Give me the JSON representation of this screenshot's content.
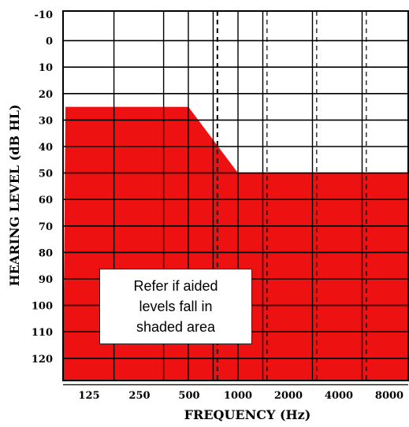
{
  "chart_data": {
    "type": "area",
    "title": "",
    "xlabel": "FREQUENCY (Hz)",
    "ylabel": "HEARING LEVEL (dB HL)",
    "x_scale": "log",
    "x_ticks": [
      "125",
      "250",
      "500",
      "1000",
      "2000",
      "4000",
      "8000"
    ],
    "x_dashed_ticks": [
      750,
      1500,
      3000,
      6000
    ],
    "y_ticks": [
      "-10",
      "0",
      "10",
      "20",
      "30",
      "40",
      "50",
      "60",
      "70",
      "80",
      "90",
      "100",
      "110",
      "120"
    ],
    "y_inverted": true,
    "ylim": [
      -10,
      130
    ],
    "grid": true,
    "fill_color": "#ee1111",
    "series": [
      {
        "x": [
          90,
          500,
          1000,
          11000
        ],
        "values": [
          25,
          25,
          50,
          50
        ]
      }
    ],
    "annotation": "Refer if  aided\nlevels fall in\nshaded area"
  }
}
